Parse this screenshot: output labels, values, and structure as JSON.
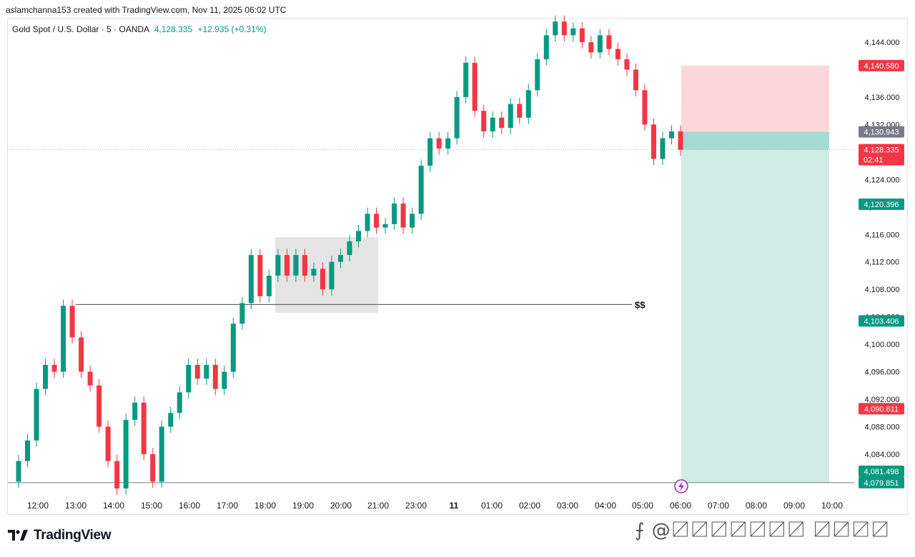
{
  "header": {
    "attribution": "aslamchanna153 created with TradingView.com, Nov 11, 2025 06:02 UTC"
  },
  "legend": {
    "symbol": "Gold Spot / U.S. Dollar · 5 · OANDA",
    "price": "4,128.335",
    "change": "+12.935 (+0.31%)"
  },
  "branding": {
    "logo_text": "TradingView"
  },
  "watermark": "⨍ @〼〼〼〼〼〼〼 〼〼〼〼",
  "colors": {
    "up": "#089981",
    "down": "#f23645",
    "loss_zone": "#fcd6d9",
    "profit_zone": "#d0ece4",
    "entry_zone": "#a4dbd0"
  },
  "chart_data": {
    "type": "candlestick",
    "y_axis": {
      "ylim": [
        4078,
        4148
      ],
      "tick_values": [
        4084,
        4088,
        4092,
        4096,
        4100,
        4104,
        4108,
        4112,
        4116,
        4120,
        4124,
        4128,
        4132,
        4136,
        4144
      ],
      "tick_labels": [
        "4,084.000",
        "4,088.000",
        "4,092.000",
        "4,096.000",
        "4,100.000",
        "4,104.000",
        "4,108.000",
        "4,112.000",
        "4,116.000",
        "4,120.000",
        "4,124.000",
        "4,128.000",
        "4,132.000",
        "4,136.000",
        "4,144.000"
      ]
    },
    "x_axis": {
      "tick_labels": [
        "12:00",
        "13:00",
        "14:00",
        "15:00",
        "16:00",
        "17:00",
        "18:00",
        "19:00",
        "20:00",
        "21:00",
        "23:00",
        "11",
        "01:00",
        "02:00",
        "03:00",
        "04:00",
        "05:00",
        "06:00",
        "07:00",
        "08:00",
        "09:00",
        "10:00"
      ],
      "bold_label": "11"
    },
    "price_labels": [
      {
        "text": "4,140.580",
        "value": 4140.58,
        "color": "#f23645"
      },
      {
        "text": "4,130.943",
        "value": 4130.943,
        "color": "#787b86"
      },
      {
        "text": "4,128.335",
        "value": 4128.335,
        "color": "#f23645",
        "sub": "02:41"
      },
      {
        "text": "4,120.396",
        "value": 4120.396,
        "color": "#089981"
      },
      {
        "text": "4,103.406",
        "value": 4103.406,
        "color": "#089981"
      },
      {
        "text": "4,090.611",
        "value": 4090.611,
        "color": "#f23645"
      },
      {
        "text": "4,081.498",
        "value": 4081.498,
        "color": "#089981"
      },
      {
        "text": "4,079.851",
        "value": 4079.851,
        "color": "#089981"
      }
    ],
    "annotations": {
      "liquidity_label": "$$",
      "liquidity_level": 4105.8,
      "bottom_line": 4079.851,
      "current_price_line": 4128.335,
      "consolidation_box": {
        "y_top": 4115.6,
        "y_bottom": 4104.6
      },
      "position": {
        "stop": 4140.58,
        "entry": 4130.943,
        "target": 4079.851
      }
    },
    "candles_ohlc_path": [
      [
        4080.0,
        4083.0
      ],
      [
        4083.0,
        4086.0
      ],
      [
        4086.0,
        4093.5
      ],
      [
        4093.5,
        4097.0
      ],
      [
        4097.0,
        4096.0
      ],
      [
        4096.0,
        4105.6
      ],
      [
        4105.6,
        4101.0
      ],
      [
        4101.0,
        4096.0
      ],
      [
        4096.0,
        4094.0
      ],
      [
        4094.0,
        4088.0
      ],
      [
        4088.0,
        4083.0
      ],
      [
        4083.0,
        4079.0
      ],
      [
        4079.0,
        4089.0
      ],
      [
        4089.0,
        4091.5
      ],
      [
        4091.5,
        4084.0
      ],
      [
        4084.0,
        4080.0
      ],
      [
        4080.0,
        4088.0
      ],
      [
        4088.0,
        4090.0
      ],
      [
        4090.0,
        4093.0
      ],
      [
        4093.0,
        4097.0
      ],
      [
        4097.0,
        4095.0
      ],
      [
        4095.0,
        4097.0
      ],
      [
        4097.0,
        4093.5
      ],
      [
        4093.5,
        4096.0
      ],
      [
        4096.0,
        4103.0
      ],
      [
        4103.0,
        4106.0
      ],
      [
        4106.0,
        4113.0
      ],
      [
        4113.0,
        4107.0
      ],
      [
        4107.0,
        4110.0
      ],
      [
        4110.0,
        4113.0
      ],
      [
        4113.0,
        4110.0
      ],
      [
        4110.0,
        4113.0
      ],
      [
        4113.0,
        4110.0
      ],
      [
        4110.0,
        4111.0
      ],
      [
        4111.0,
        4108.0
      ],
      [
        4108.0,
        4112.0
      ],
      [
        4112.0,
        4113.0
      ],
      [
        4113.0,
        4115.0
      ],
      [
        4115.0,
        4116.5
      ],
      [
        4116.5,
        4119.0
      ],
      [
        4119.0,
        4117.0
      ],
      [
        4117.0,
        4117.5
      ],
      [
        4117.5,
        4120.5
      ],
      [
        4120.5,
        4117.0
      ],
      [
        4117.0,
        4119.0
      ],
      [
        4119.0,
        4126.0
      ],
      [
        4126.0,
        4130.0
      ],
      [
        4130.0,
        4128.5
      ],
      [
        4128.5,
        4130.0
      ],
      [
        4130.0,
        4136.0
      ],
      [
        4136.0,
        4141.0
      ],
      [
        4141.0,
        4134.0
      ],
      [
        4134.0,
        4131.0
      ],
      [
        4131.0,
        4133.0
      ],
      [
        4133.0,
        4131.5
      ],
      [
        4131.5,
        4135.0
      ],
      [
        4135.0,
        4133.0
      ],
      [
        4133.0,
        4137.0
      ],
      [
        4137.0,
        4141.5
      ],
      [
        4141.5,
        4145.0
      ],
      [
        4145.0,
        4147.0
      ],
      [
        4147.0,
        4145.0
      ],
      [
        4145.0,
        4146.0
      ],
      [
        4146.0,
        4144.0
      ],
      [
        4144.0,
        4142.5
      ],
      [
        4142.5,
        4145.0
      ],
      [
        4145.0,
        4143.0
      ],
      [
        4143.0,
        4141.5
      ],
      [
        4141.5,
        4140.0
      ],
      [
        4140.0,
        4137.0
      ],
      [
        4137.0,
        4132.0
      ],
      [
        4132.0,
        4127.0
      ],
      [
        4127.0,
        4130.0
      ],
      [
        4130.0,
        4131.0
      ],
      [
        4131.0,
        4128.335
      ]
    ]
  }
}
